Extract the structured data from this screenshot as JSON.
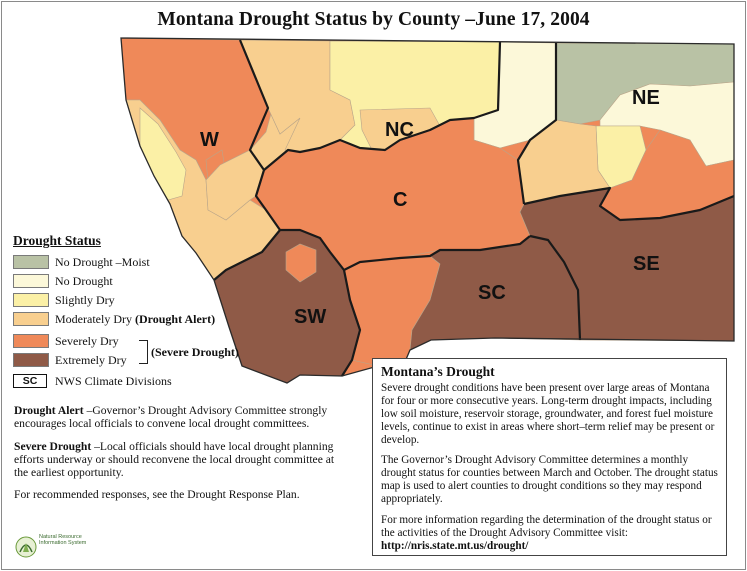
{
  "title": "Montana Drought Status by County –June 17, 2004",
  "colors": {
    "no_drought_moist": "#b9c2a5",
    "no_drought": "#fcf8d9",
    "slightly_dry": "#fbf0a6",
    "moderately_dry": "#f8cf8f",
    "severely_dry": "#ef8959",
    "extremely_dry": "#8f5a47"
  },
  "map": {
    "divisions": [
      "W",
      "NC",
      "NE",
      "C",
      "SW",
      "SC",
      "SE"
    ]
  },
  "legend": {
    "title": "Drought Status",
    "items": [
      {
        "label": "No Drought –Moist",
        "color_key": "no_drought_moist"
      },
      {
        "label": "No Drought",
        "color_key": "no_drought"
      },
      {
        "label": "Slightly Dry",
        "color_key": "slightly_dry"
      },
      {
        "label": "Moderately Dry",
        "extra": "(Drought Alert)",
        "color_key": "moderately_dry"
      },
      {
        "label": "Severely Dry",
        "color_key": "severely_dry"
      },
      {
        "label": "Extremely Dry",
        "color_key": "extremely_dry"
      }
    ],
    "severe_group_label": "(Severe Drought)",
    "sc_box_label": "SC",
    "sc_box_desc": "NWS Climate Divisions"
  },
  "notes": {
    "alert_term": "Drought Alert",
    "alert_text": " –Governor’s Drought Advisory Committee strongly encourages local officials to convene local drought committees.",
    "severe_term": "Severe Drought",
    "severe_text": " –Local officials should have local drought planning efforts underway or should reconvene the local drought committee at the earliest opportunity.",
    "response": "For recommended responses, see the Drought Response Plan."
  },
  "logo": {
    "text": "Natural Resource Information System"
  },
  "infobox": {
    "title": "Montana’s Drought",
    "p1": "Severe drought conditions have been present over large areas of Montana for four or more consecutive years. Long-term drought impacts, including low soil moisture, reservoir storage, groundwater, and forest fuel moisture levels, continue to exist in areas where short–term relief may be present or develop.",
    "p2": "The Governor’s Drought Advisory Committee determines a monthly drought status for counties between March and October. The drought status map is used to alert counties to drought conditions so they may respond appropriately.",
    "p3": "For more information regarding the determination of the drought status or the activities of the Drought Advisory Committee visit:",
    "url": "http://nris.state.mt.us/drought/"
  }
}
